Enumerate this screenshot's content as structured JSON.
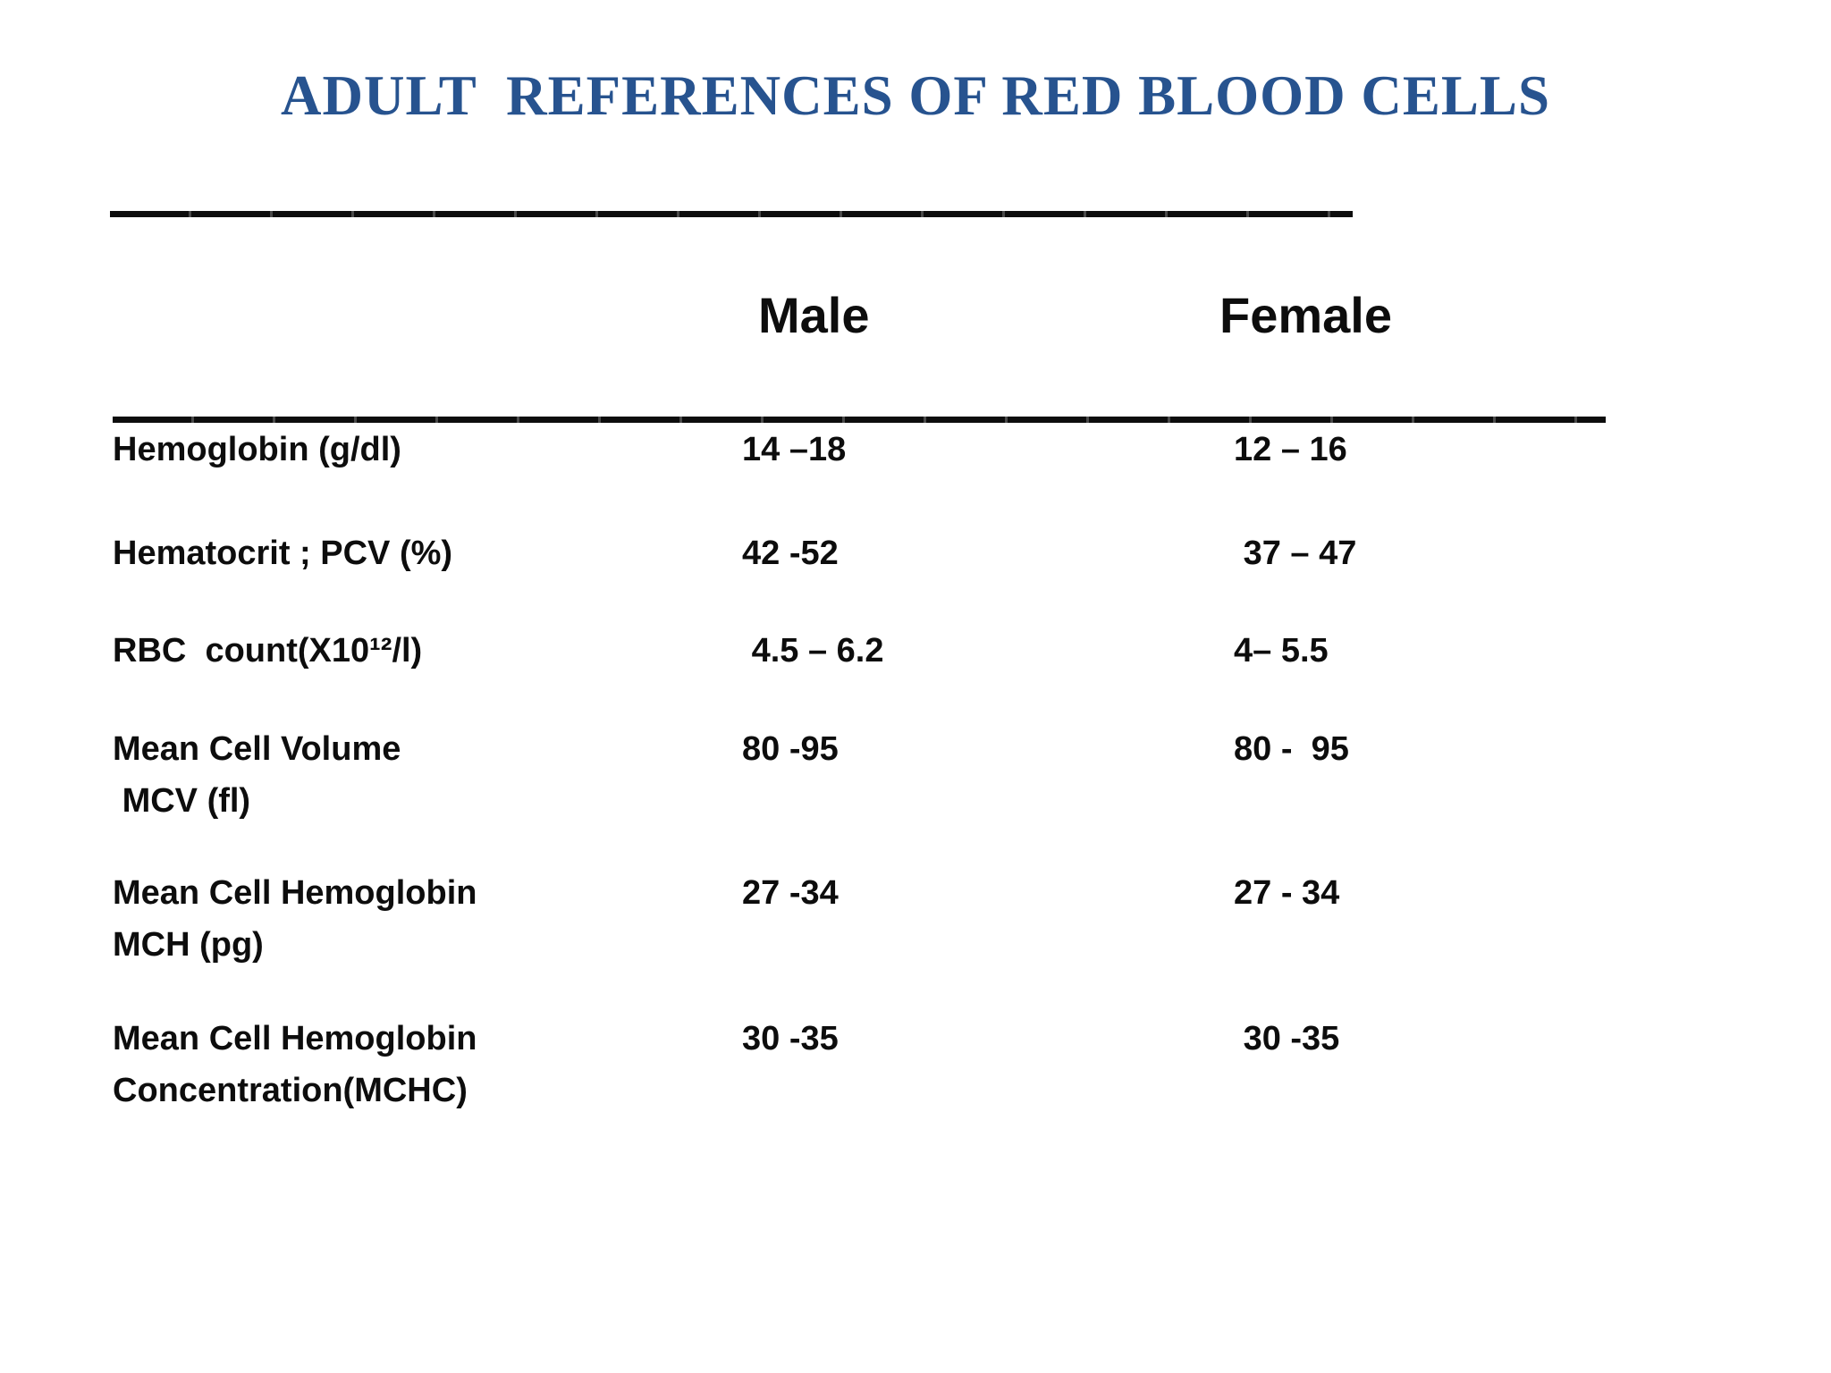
{
  "slide": {
    "title": "ADULT  REFERENCES OF RED BLOOD CELLS",
    "colors": {
      "title_text": "#27538f",
      "body_text": "#0d0d0d",
      "rule": "#0d0d0d",
      "background": "#ffffff"
    }
  },
  "table": {
    "headers": {
      "male": "Male",
      "female": "Female"
    },
    "rows": [
      {
        "label": "Hemoglobin (g/dl)",
        "male": "14 –18",
        "female": "12 – 16"
      },
      {
        "label": "Hematocrit ; PCV (%)",
        "male": "42 -52",
        "female": " 37 – 47"
      },
      {
        "label": "RBC  count(X10¹²/l)",
        "male": " 4.5 – 6.2",
        "female": "4– 5.5"
      },
      {
        "label": "Mean Cell Volume\n MCV (fl)",
        "male": "80 -95",
        "female": "80 -  95"
      },
      {
        "label": "Mean Cell Hemoglobin\nMCH (pg)",
        "male": "27 -34",
        "female": "27 - 34"
      },
      {
        "label": "Mean Cell Hemoglobin\nConcentration(MCHC)",
        "male": "30 -35",
        "female": " 30 -35"
      }
    ]
  }
}
